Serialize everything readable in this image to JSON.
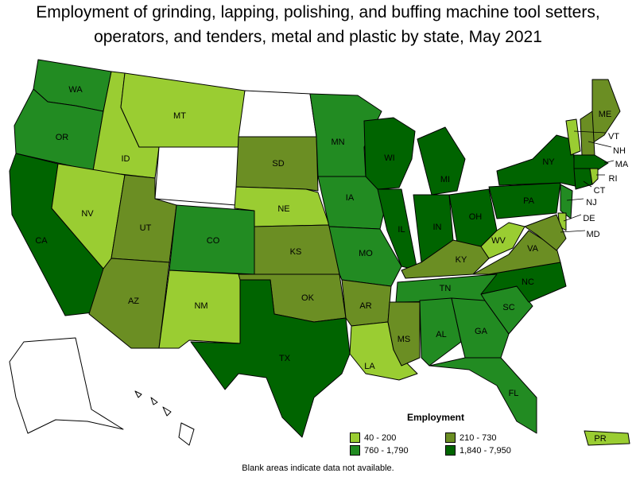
{
  "title": "Employment of grinding, lapping, polishing, and buffing machine tool setters, operators, and tenders, metal and plastic by state, May 2021",
  "footnote": "Blank areas indicate data not available.",
  "legend": {
    "title": "Employment",
    "items": [
      {
        "label": "40 - 200",
        "color": "#9acd32"
      },
      {
        "label": "210 - 730",
        "color": "#6b8e23"
      },
      {
        "label": "760 - 1,790",
        "color": "#228b22"
      },
      {
        "label": "1,840 - 7,950",
        "color": "#006400"
      }
    ]
  },
  "na_color": "#ffffff",
  "states": [
    {
      "id": "WA",
      "label": "WA",
      "class": 2
    },
    {
      "id": "OR",
      "label": "OR",
      "class": 2
    },
    {
      "id": "CA",
      "label": "CA",
      "class": 3
    },
    {
      "id": "ID",
      "label": "ID",
      "class": 0
    },
    {
      "id": "NV",
      "label": "NV",
      "class": 0
    },
    {
      "id": "MT",
      "label": "MT",
      "class": 0
    },
    {
      "id": "WY",
      "label": "",
      "class": null
    },
    {
      "id": "UT",
      "label": "UT",
      "class": 1
    },
    {
      "id": "AZ",
      "label": "AZ",
      "class": 1
    },
    {
      "id": "CO",
      "label": "CO",
      "class": 2
    },
    {
      "id": "NM",
      "label": "NM",
      "class": 0
    },
    {
      "id": "ND",
      "label": "",
      "class": null
    },
    {
      "id": "SD",
      "label": "SD",
      "class": 1
    },
    {
      "id": "NE",
      "label": "NE",
      "class": 0
    },
    {
      "id": "KS",
      "label": "KS",
      "class": 1
    },
    {
      "id": "OK",
      "label": "OK",
      "class": 1
    },
    {
      "id": "TX",
      "label": "TX",
      "class": 3
    },
    {
      "id": "MN",
      "label": "MN",
      "class": 2
    },
    {
      "id": "IA",
      "label": "IA",
      "class": 2
    },
    {
      "id": "MO",
      "label": "MO",
      "class": 2
    },
    {
      "id": "AR",
      "label": "AR",
      "class": 1
    },
    {
      "id": "LA",
      "label": "LA",
      "class": 0
    },
    {
      "id": "WI",
      "label": "WI",
      "class": 3
    },
    {
      "id": "IL",
      "label": "IL",
      "class": 3
    },
    {
      "id": "MI",
      "label": "MI",
      "class": 3
    },
    {
      "id": "IN",
      "label": "IN",
      "class": 3
    },
    {
      "id": "OH",
      "label": "OH",
      "class": 3
    },
    {
      "id": "KY",
      "label": "KY",
      "class": 1
    },
    {
      "id": "TN",
      "label": "TN",
      "class": 2
    },
    {
      "id": "MS",
      "label": "MS",
      "class": 1
    },
    {
      "id": "AL",
      "label": "AL",
      "class": 2
    },
    {
      "id": "GA",
      "label": "GA",
      "class": 2
    },
    {
      "id": "FL",
      "label": "FL",
      "class": 2
    },
    {
      "id": "SC",
      "label": "SC",
      "class": 2
    },
    {
      "id": "NC",
      "label": "NC",
      "class": 3
    },
    {
      "id": "VA",
      "label": "VA",
      "class": 1
    },
    {
      "id": "WV",
      "label": "WV",
      "class": 0
    },
    {
      "id": "PA",
      "label": "PA",
      "class": 3
    },
    {
      "id": "NY",
      "label": "NY",
      "class": 3
    },
    {
      "id": "ME",
      "label": "ME",
      "class": 1
    },
    {
      "id": "VT",
      "label": "VT",
      "class": 0
    },
    {
      "id": "NH",
      "label": "NH",
      "class": 1
    },
    {
      "id": "MA",
      "label": "MA",
      "class": 3
    },
    {
      "id": "CT",
      "label": "CT",
      "class": 3
    },
    {
      "id": "RI",
      "label": "RI",
      "class": 0
    },
    {
      "id": "NJ",
      "label": "NJ",
      "class": 2
    },
    {
      "id": "DE",
      "label": "DE",
      "class": 0
    },
    {
      "id": "MD",
      "label": "MD",
      "class": 1
    },
    {
      "id": "AK",
      "label": "",
      "class": null
    },
    {
      "id": "HI",
      "label": "",
      "class": null
    },
    {
      "id": "PR",
      "label": "PR",
      "class": 0
    }
  ]
}
